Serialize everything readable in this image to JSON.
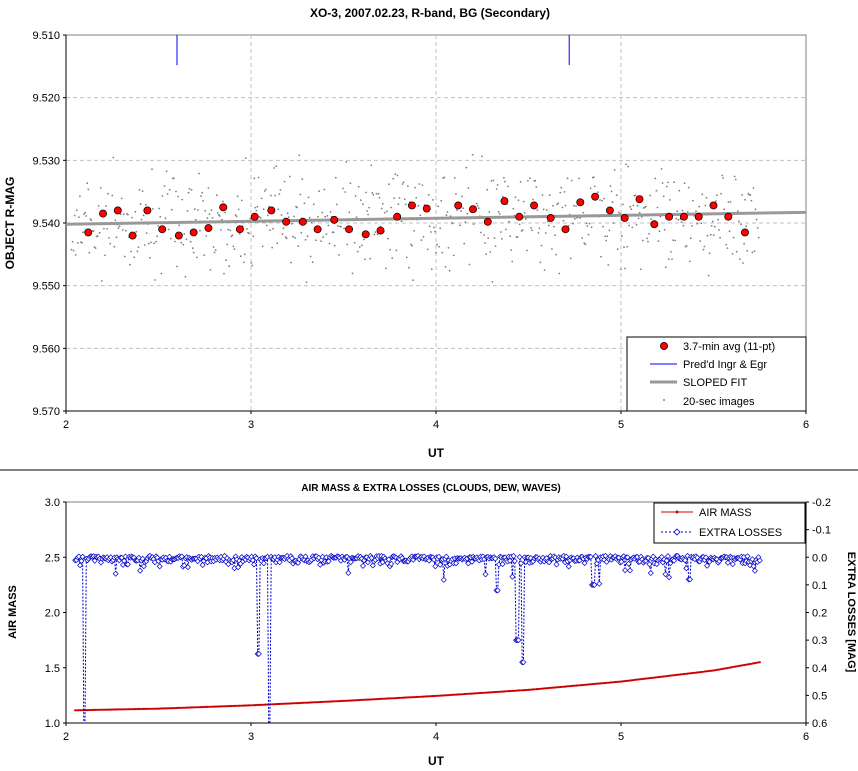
{
  "chart_data": [
    {
      "type": "scatter",
      "title": "XO-3, 2007.02.23, R-band, BG (Secondary)",
      "xlabel": "UT",
      "ylabel": "OBJECT R-MAG",
      "xlim": [
        2,
        6
      ],
      "ylim": [
        9.51,
        9.57
      ],
      "y_reversed": true,
      "grid": true,
      "legend_position": "bottom-right",
      "x_ticks": [
        "2",
        "3",
        "4",
        "5",
        "6"
      ],
      "y_ticks": [
        "9.510",
        "9.520",
        "9.530",
        "9.540",
        "9.550",
        "9.560",
        "9.570"
      ],
      "series": [
        {
          "name": "3.7-min avg (11-pt)",
          "color": "#ff0000",
          "x": [
            2.12,
            2.2,
            2.28,
            2.36,
            2.44,
            2.52,
            2.61,
            2.69,
            2.77,
            2.85,
            2.94,
            3.02,
            3.11,
            3.19,
            3.28,
            3.36,
            3.45,
            3.53,
            3.62,
            3.7,
            3.79,
            3.87,
            3.95,
            4.12,
            4.2,
            4.28,
            4.37,
            4.45,
            4.53,
            4.62,
            4.7,
            4.78,
            4.86,
            4.94,
            5.02,
            5.1,
            5.18,
            5.26,
            5.34,
            5.42,
            5.5,
            5.58,
            5.67
          ],
          "y": [
            9.5415,
            9.5385,
            9.538,
            9.542,
            9.538,
            9.541,
            9.542,
            9.5415,
            9.5408,
            9.5375,
            9.541,
            9.539,
            9.538,
            9.5398,
            9.5398,
            9.541,
            9.5395,
            9.541,
            9.5418,
            9.5412,
            9.539,
            9.5372,
            9.5377,
            9.5372,
            9.5378,
            9.5398,
            9.5365,
            9.539,
            9.5372,
            9.5392,
            9.541,
            9.5367,
            9.5358,
            9.538,
            9.5392,
            9.5362,
            9.5402,
            9.539,
            9.539,
            9.539,
            9.5372,
            9.539,
            9.5415
          ]
        },
        {
          "name": "Pred'd Ingr & Egr",
          "color": "#0000ff",
          "x": [
            2.6,
            4.72
          ],
          "y_from": 9.51,
          "y_to": 9.5148
        },
        {
          "name": "SLOPED FIT",
          "color": "#999999",
          "x": [
            2.0,
            6.0
          ],
          "y": [
            9.5402,
            9.5383
          ]
        },
        {
          "name": "20-sec images",
          "color": "#808080",
          "x_range": [
            2.03,
            5.75
          ],
          "count": 660,
          "center": "SLOPED FIT",
          "scatter_mag": 0.004
        }
      ]
    },
    {
      "type": "line",
      "title": "AIR MASS & EXTRA LOSSES (CLOUDS, DEW, WAVES)",
      "xlabel": "UT",
      "ylabel": "AIR MASS",
      "y2label": "EXTRA LOSSES [MAG]",
      "xlim": [
        2,
        6
      ],
      "ylim": [
        1.0,
        3.0
      ],
      "y2lim": [
        0.6,
        -0.2
      ],
      "grid": false,
      "legend_position": "top-right",
      "x_ticks": [
        "2",
        "3",
        "4",
        "5",
        "6"
      ],
      "y_ticks": [
        "1.0",
        "1.5",
        "2.0",
        "2.5",
        "3.0"
      ],
      "y2_ticks": [
        "-0.2",
        "-0.1",
        "0.0",
        "0.1",
        "0.2",
        "0.3",
        "0.4",
        "0.5",
        "0.6"
      ],
      "series": [
        {
          "name": "AIR MASS",
          "color": "#cc0000",
          "x": [
            2.05,
            2.5,
            3.0,
            3.5,
            4.0,
            4.5,
            5.0,
            5.5,
            5.75
          ],
          "y": [
            1.115,
            1.13,
            1.16,
            1.2,
            1.245,
            1.3,
            1.375,
            1.475,
            1.55
          ]
        },
        {
          "name": "EXTRA LOSSES",
          "color": "#0000cc",
          "x_range": [
            2.05,
            5.75
          ],
          "count": 560,
          "baseline": 0.0,
          "noise": 0.03,
          "dips": [
            {
              "x": 2.1,
              "y": 0.6
            },
            {
              "x": 3.04,
              "y": 0.35
            },
            {
              "x": 3.1,
              "y": 0.6
            },
            {
              "x": 4.33,
              "y": 0.12
            },
            {
              "x": 4.44,
              "y": 0.3
            },
            {
              "x": 4.47,
              "y": 0.38
            },
            {
              "x": 4.85,
              "y": 0.1
            },
            {
              "x": 5.37,
              "y": 0.08
            }
          ]
        }
      ]
    }
  ]
}
